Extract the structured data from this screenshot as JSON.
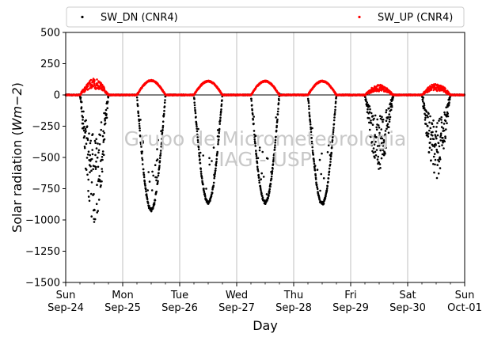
{
  "chart_data": {
    "type": "scatter",
    "title": "",
    "xlabel": "Day",
    "ylabel": "Solar radiation ($Wm{-2}$)",
    "ylabel_text": "Solar radiation (",
    "ylabel_unit": "Wm−2",
    "ylabel_close": ")",
    "ylim": [
      -1500,
      500
    ],
    "yticks": [
      {
        "value": 500,
        "label": "500"
      },
      {
        "value": 250,
        "label": "250"
      },
      {
        "value": 0,
        "label": "0"
      },
      {
        "value": -250,
        "label": "−250"
      },
      {
        "value": -500,
        "label": "−500"
      },
      {
        "value": -750,
        "label": "−750"
      },
      {
        "value": -1000,
        "label": "−1000"
      },
      {
        "value": -1250,
        "label": "−1250"
      },
      {
        "value": -1500,
        "label": "−1500"
      }
    ],
    "xlim": [
      "2017-09-24 00:00",
      "2017-10-01 00:00"
    ],
    "xticks": [
      {
        "date": "2017-09-24",
        "day": "Sun",
        "label": "Sep-24"
      },
      {
        "date": "2017-09-25",
        "day": "Mon",
        "label": "Sep-25"
      },
      {
        "date": "2017-09-26",
        "day": "Tue",
        "label": "Sep-26"
      },
      {
        "date": "2017-09-27",
        "day": "Wed",
        "label": "Sep-27"
      },
      {
        "date": "2017-09-28",
        "day": "Thu",
        "label": "Sep-28"
      },
      {
        "date": "2017-09-29",
        "day": "Fri",
        "label": "Sep-29"
      },
      {
        "date": "2017-09-30",
        "day": "Sat",
        "label": "Sep-30"
      },
      {
        "date": "2017-10-01",
        "day": "Sun",
        "label": "Oct-01"
      }
    ],
    "grid": "vertical",
    "legend_position": "top",
    "watermark": [
      "Grupo de Micrometeorologia",
      "IAG - USP"
    ],
    "series": [
      {
        "name": "SW_DN (CNR4)",
        "color": "#000000",
        "daily_peak": [
          -1030,
          -920,
          -860,
          -860,
          -870,
          -600,
          -670
        ]
      },
      {
        "name": "SW_UP (CNR4)",
        "color": "#ff0000",
        "daily_peak": [
          130,
          115,
          110,
          110,
          110,
          80,
          90
        ]
      }
    ]
  }
}
